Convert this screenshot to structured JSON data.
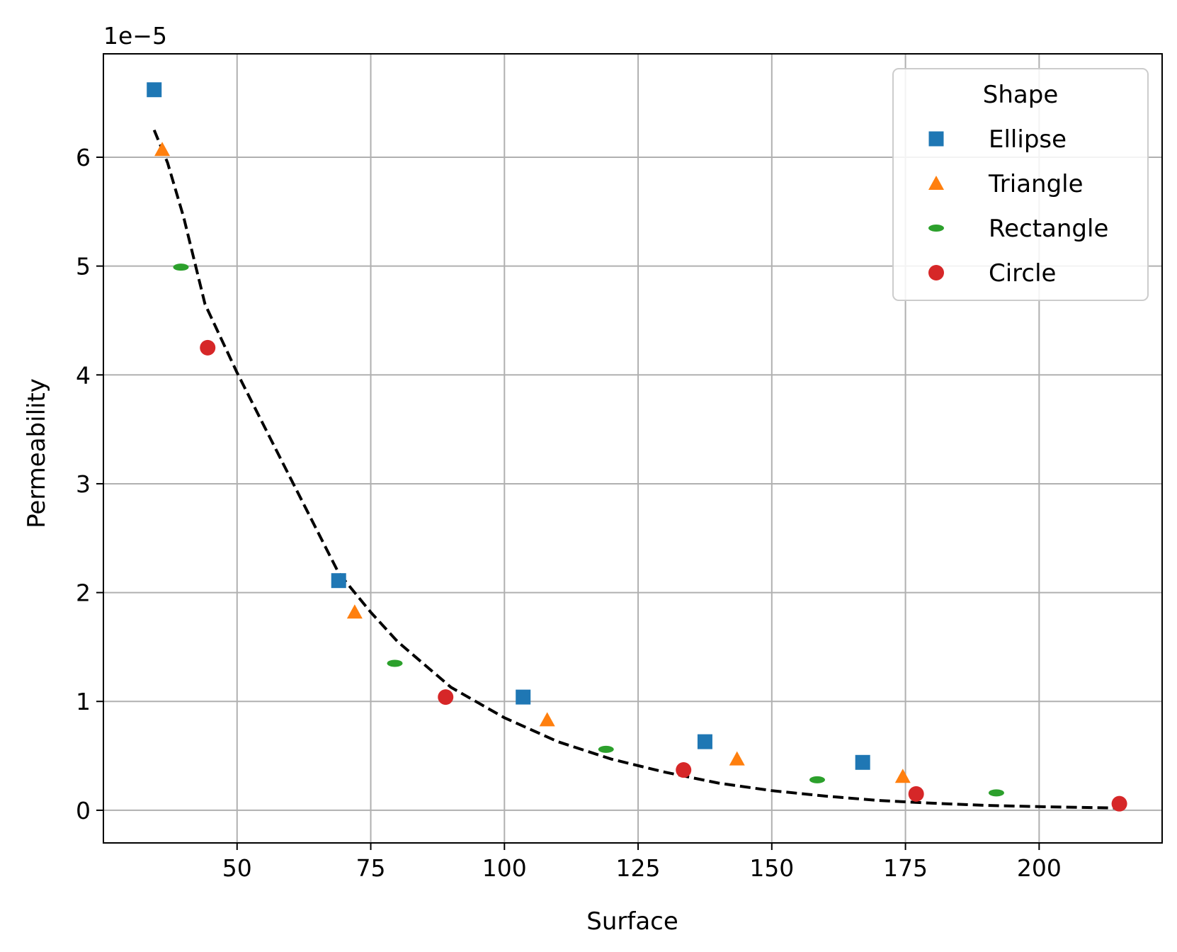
{
  "chart_data": {
    "type": "scatter",
    "xlabel": "Surface",
    "ylabel": "Permeability",
    "offset_label": "1e−5",
    "y_scale_factor": 1e-05,
    "xlim": [
      25,
      223
    ],
    "ylim": [
      -0.3,
      6.95
    ],
    "x_ticks": [
      50,
      75,
      100,
      125,
      150,
      175,
      200
    ],
    "y_ticks": [
      0,
      1,
      2,
      3,
      4,
      5,
      6
    ],
    "grid": true,
    "legend": {
      "title": "Shape",
      "position": "top-right"
    },
    "series": [
      {
        "name": "Ellipse",
        "marker": "square",
        "color": "#1f77b4",
        "points": [
          [
            34.5,
            6.62
          ],
          [
            69.0,
            2.11
          ],
          [
            103.5,
            1.04
          ],
          [
            137.5,
            0.63
          ],
          [
            167.0,
            0.44
          ]
        ]
      },
      {
        "name": "Triangle",
        "marker": "triangle",
        "color": "#ff7f0e",
        "points": [
          [
            36.0,
            6.07
          ],
          [
            72.0,
            1.82
          ],
          [
            108.0,
            0.83
          ],
          [
            143.5,
            0.47
          ],
          [
            174.5,
            0.31
          ]
        ]
      },
      {
        "name": "Rectangle",
        "marker": "ellipse",
        "color": "#2ca02c",
        "points": [
          [
            39.5,
            4.99
          ],
          [
            79.5,
            1.35
          ],
          [
            119.0,
            0.56
          ],
          [
            158.5,
            0.28
          ],
          [
            192.0,
            0.16
          ]
        ]
      },
      {
        "name": "Circle",
        "marker": "circle",
        "color": "#d62728",
        "points": [
          [
            44.5,
            4.25
          ],
          [
            89.0,
            1.04
          ],
          [
            133.5,
            0.37
          ],
          [
            177.0,
            0.15
          ],
          [
            215.0,
            0.06
          ]
        ]
      }
    ],
    "fit_line": {
      "style": "dashed",
      "color": "#000000",
      "points": [
        [
          34.5,
          6.25
        ],
        [
          37,
          5.95
        ],
        [
          40,
          5.45
        ],
        [
          44,
          4.65
        ],
        [
          50,
          4.02
        ],
        [
          60,
          3.05
        ],
        [
          69,
          2.18
        ],
        [
          75,
          1.82
        ],
        [
          80,
          1.55
        ],
        [
          90,
          1.13
        ],
        [
          100,
          0.85
        ],
        [
          110,
          0.63
        ],
        [
          120,
          0.47
        ],
        [
          130,
          0.35
        ],
        [
          140,
          0.25
        ],
        [
          150,
          0.18
        ],
        [
          160,
          0.13
        ],
        [
          170,
          0.09
        ],
        [
          180,
          0.065
        ],
        [
          190,
          0.045
        ],
        [
          200,
          0.033
        ],
        [
          215,
          0.02
        ]
      ]
    }
  }
}
